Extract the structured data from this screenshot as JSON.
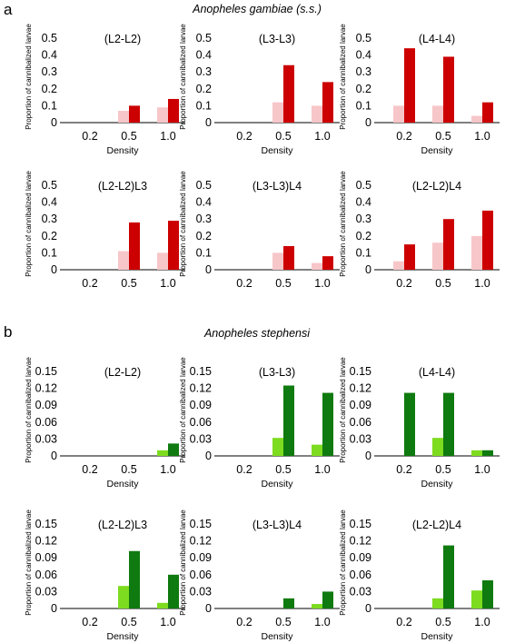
{
  "panel_a": {
    "letter": "a",
    "species": "Anopheles gambiae (s.s.)",
    "colors": {
      "light": "#f7c6c9",
      "dark": "#cc0000"
    }
  },
  "panel_b": {
    "letter": "b",
    "species": "Anopheles stephensi",
    "colors": {
      "light": "#7ddc1f",
      "dark": "#0f7a0f"
    }
  },
  "chart_data": [
    {
      "panel": "a",
      "type": "bar",
      "title": "(L2-L2)",
      "xlabel": "Density",
      "ylabel": "Proportion of cannibalized larvae",
      "categories": [
        "0.2",
        "0.5",
        "1.0"
      ],
      "ylim": [
        0,
        0.5
      ],
      "yticks": [
        "0",
        "0.1",
        "0.2",
        "0.3",
        "0.4",
        "0.5"
      ],
      "series": [
        {
          "values": [
            0,
            0.07,
            0.09
          ]
        },
        {
          "values": [
            0,
            0.1,
            0.14
          ]
        }
      ]
    },
    {
      "panel": "a",
      "type": "bar",
      "title": "(L3-L3)",
      "xlabel": "Density",
      "ylabel": "Proportion of cannibalized larvae",
      "categories": [
        "0.2",
        "0.5",
        "1.0"
      ],
      "ylim": [
        0,
        0.5
      ],
      "yticks": [
        "0",
        "0.1",
        "0.2",
        "0.3",
        "0.4",
        "0.5"
      ],
      "series": [
        {
          "values": [
            0,
            0.12,
            0.1
          ]
        },
        {
          "values": [
            0,
            0.34,
            0.24
          ]
        }
      ]
    },
    {
      "panel": "a",
      "type": "bar",
      "title": "(L4-L4)",
      "xlabel": "Density",
      "ylabel": "Proportion of cannibalized larvae",
      "categories": [
        "0.2",
        "0.5",
        "1.0"
      ],
      "ylim": [
        0,
        0.5
      ],
      "yticks": [
        "0",
        "0.1",
        "0.2",
        "0.3",
        "0.4",
        "0.5"
      ],
      "series": [
        {
          "values": [
            0.1,
            0.1,
            0.04
          ]
        },
        {
          "values": [
            0.44,
            0.39,
            0.12
          ]
        }
      ]
    },
    {
      "panel": "a",
      "type": "bar",
      "title": "(L2-L2)L3",
      "xlabel": "",
      "ylabel": "Proportion of cannibalized larvae",
      "categories": [
        "0.2",
        "0.5",
        "1.0"
      ],
      "ylim": [
        0,
        0.5
      ],
      "yticks": [
        "0",
        "0.1",
        "0.2",
        "0.3",
        "0.4",
        "0.5"
      ],
      "series": [
        {
          "values": [
            0,
            0.11,
            0.1
          ]
        },
        {
          "values": [
            0,
            0.28,
            0.29
          ]
        }
      ]
    },
    {
      "panel": "a",
      "type": "bar",
      "title": "(L3-L3)L4",
      "xlabel": "",
      "ylabel": "Proportion of cannibalized larvae",
      "categories": [
        "0.2",
        "0.5",
        "1.0"
      ],
      "ylim": [
        0,
        0.5
      ],
      "yticks": [
        "0",
        "0.1",
        "0.2",
        "0.3",
        "0.4",
        "0.5"
      ],
      "series": [
        {
          "values": [
            0,
            0.1,
            0.04
          ]
        },
        {
          "values": [
            0,
            0.14,
            0.08
          ]
        }
      ]
    },
    {
      "panel": "a",
      "type": "bar",
      "title": "(L2-L2)L4",
      "xlabel": "",
      "ylabel": "Proportion of cannibalized larvae",
      "categories": [
        "0.2",
        "0.5",
        "1.0"
      ],
      "ylim": [
        0,
        0.5
      ],
      "yticks": [
        "0",
        "0.1",
        "0.2",
        "0.3",
        "0.4",
        "0.5"
      ],
      "series": [
        {
          "values": [
            0.05,
            0.16,
            0.2
          ]
        },
        {
          "values": [
            0.15,
            0.3,
            0.35
          ]
        }
      ]
    },
    {
      "panel": "b",
      "type": "bar",
      "title": "(L2-L2)",
      "xlabel": "Density",
      "ylabel": "Proportion of cannibalized larvae",
      "categories": [
        "0.2",
        "0.5",
        "1.0"
      ],
      "ylim": [
        0,
        0.15
      ],
      "yticks": [
        "0",
        "0.03",
        "0.06",
        "0.09",
        "0.12",
        "0.15"
      ],
      "series": [
        {
          "values": [
            0,
            0,
            0.01
          ]
        },
        {
          "values": [
            0,
            0,
            0.022
          ]
        }
      ]
    },
    {
      "panel": "b",
      "type": "bar",
      "title": "(L3-L3)",
      "xlabel": "Density",
      "ylabel": "Proportion of cannibalized larvae",
      "categories": [
        "0.2",
        "0.5",
        "1.0"
      ],
      "ylim": [
        0,
        0.15
      ],
      "yticks": [
        "0",
        "0.03",
        "0.06",
        "0.09",
        "0.12",
        "0.15"
      ],
      "series": [
        {
          "values": [
            0,
            0.032,
            0.02
          ]
        },
        {
          "values": [
            0,
            0.125,
            0.112
          ]
        }
      ]
    },
    {
      "panel": "b",
      "type": "bar",
      "title": "(L4-L4)",
      "xlabel": "Density",
      "ylabel": "Proportion of cannibalized larvae",
      "categories": [
        "0.2",
        "0.5",
        "1.0"
      ],
      "ylim": [
        0,
        0.15
      ],
      "yticks": [
        "0",
        "0.03",
        "0.06",
        "0.09",
        "0.12",
        "0.15"
      ],
      "series": [
        {
          "values": [
            0,
            0.032,
            0.01
          ]
        },
        {
          "values": [
            0.112,
            0.112,
            0.01
          ]
        }
      ]
    },
    {
      "panel": "b",
      "type": "bar",
      "title": "(L2-L2)L3",
      "xlabel": "Density",
      "ylabel": "Proportion of cannibalized larvae",
      "categories": [
        "0.2",
        "0.5",
        "1.0"
      ],
      "ylim": [
        0,
        0.15
      ],
      "yticks": [
        "0",
        "0.03",
        "0.06",
        "0.09",
        "0.12",
        "0.15"
      ],
      "series": [
        {
          "values": [
            0,
            0.04,
            0.01
          ]
        },
        {
          "values": [
            0,
            0.102,
            0.06
          ]
        }
      ]
    },
    {
      "panel": "b",
      "type": "bar",
      "title": "(L3-L3)L4",
      "xlabel": "Density",
      "ylabel": "Proportion of cannibalized larvae",
      "categories": [
        "0.2",
        "0.5",
        "1.0"
      ],
      "ylim": [
        0,
        0.15
      ],
      "yticks": [
        "0",
        "0.03",
        "0.06",
        "0.09",
        "0.12",
        "0.15"
      ],
      "series": [
        {
          "values": [
            0,
            0,
            0.008
          ]
        },
        {
          "values": [
            0,
            0.018,
            0.03
          ]
        }
      ]
    },
    {
      "panel": "b",
      "type": "bar",
      "title": "(L2-L2)L4",
      "xlabel": "Density",
      "ylabel": "Proportion of cannibalized larvae",
      "categories": [
        "0.2",
        "0.5",
        "1.0"
      ],
      "ylim": [
        0,
        0.15
      ],
      "yticks": [
        "0",
        "0.03",
        "0.06",
        "0.09",
        "0.12",
        "0.15"
      ],
      "series": [
        {
          "values": [
            0,
            0.018,
            0.032
          ]
        },
        {
          "values": [
            0,
            0.112,
            0.05
          ]
        }
      ]
    }
  ]
}
